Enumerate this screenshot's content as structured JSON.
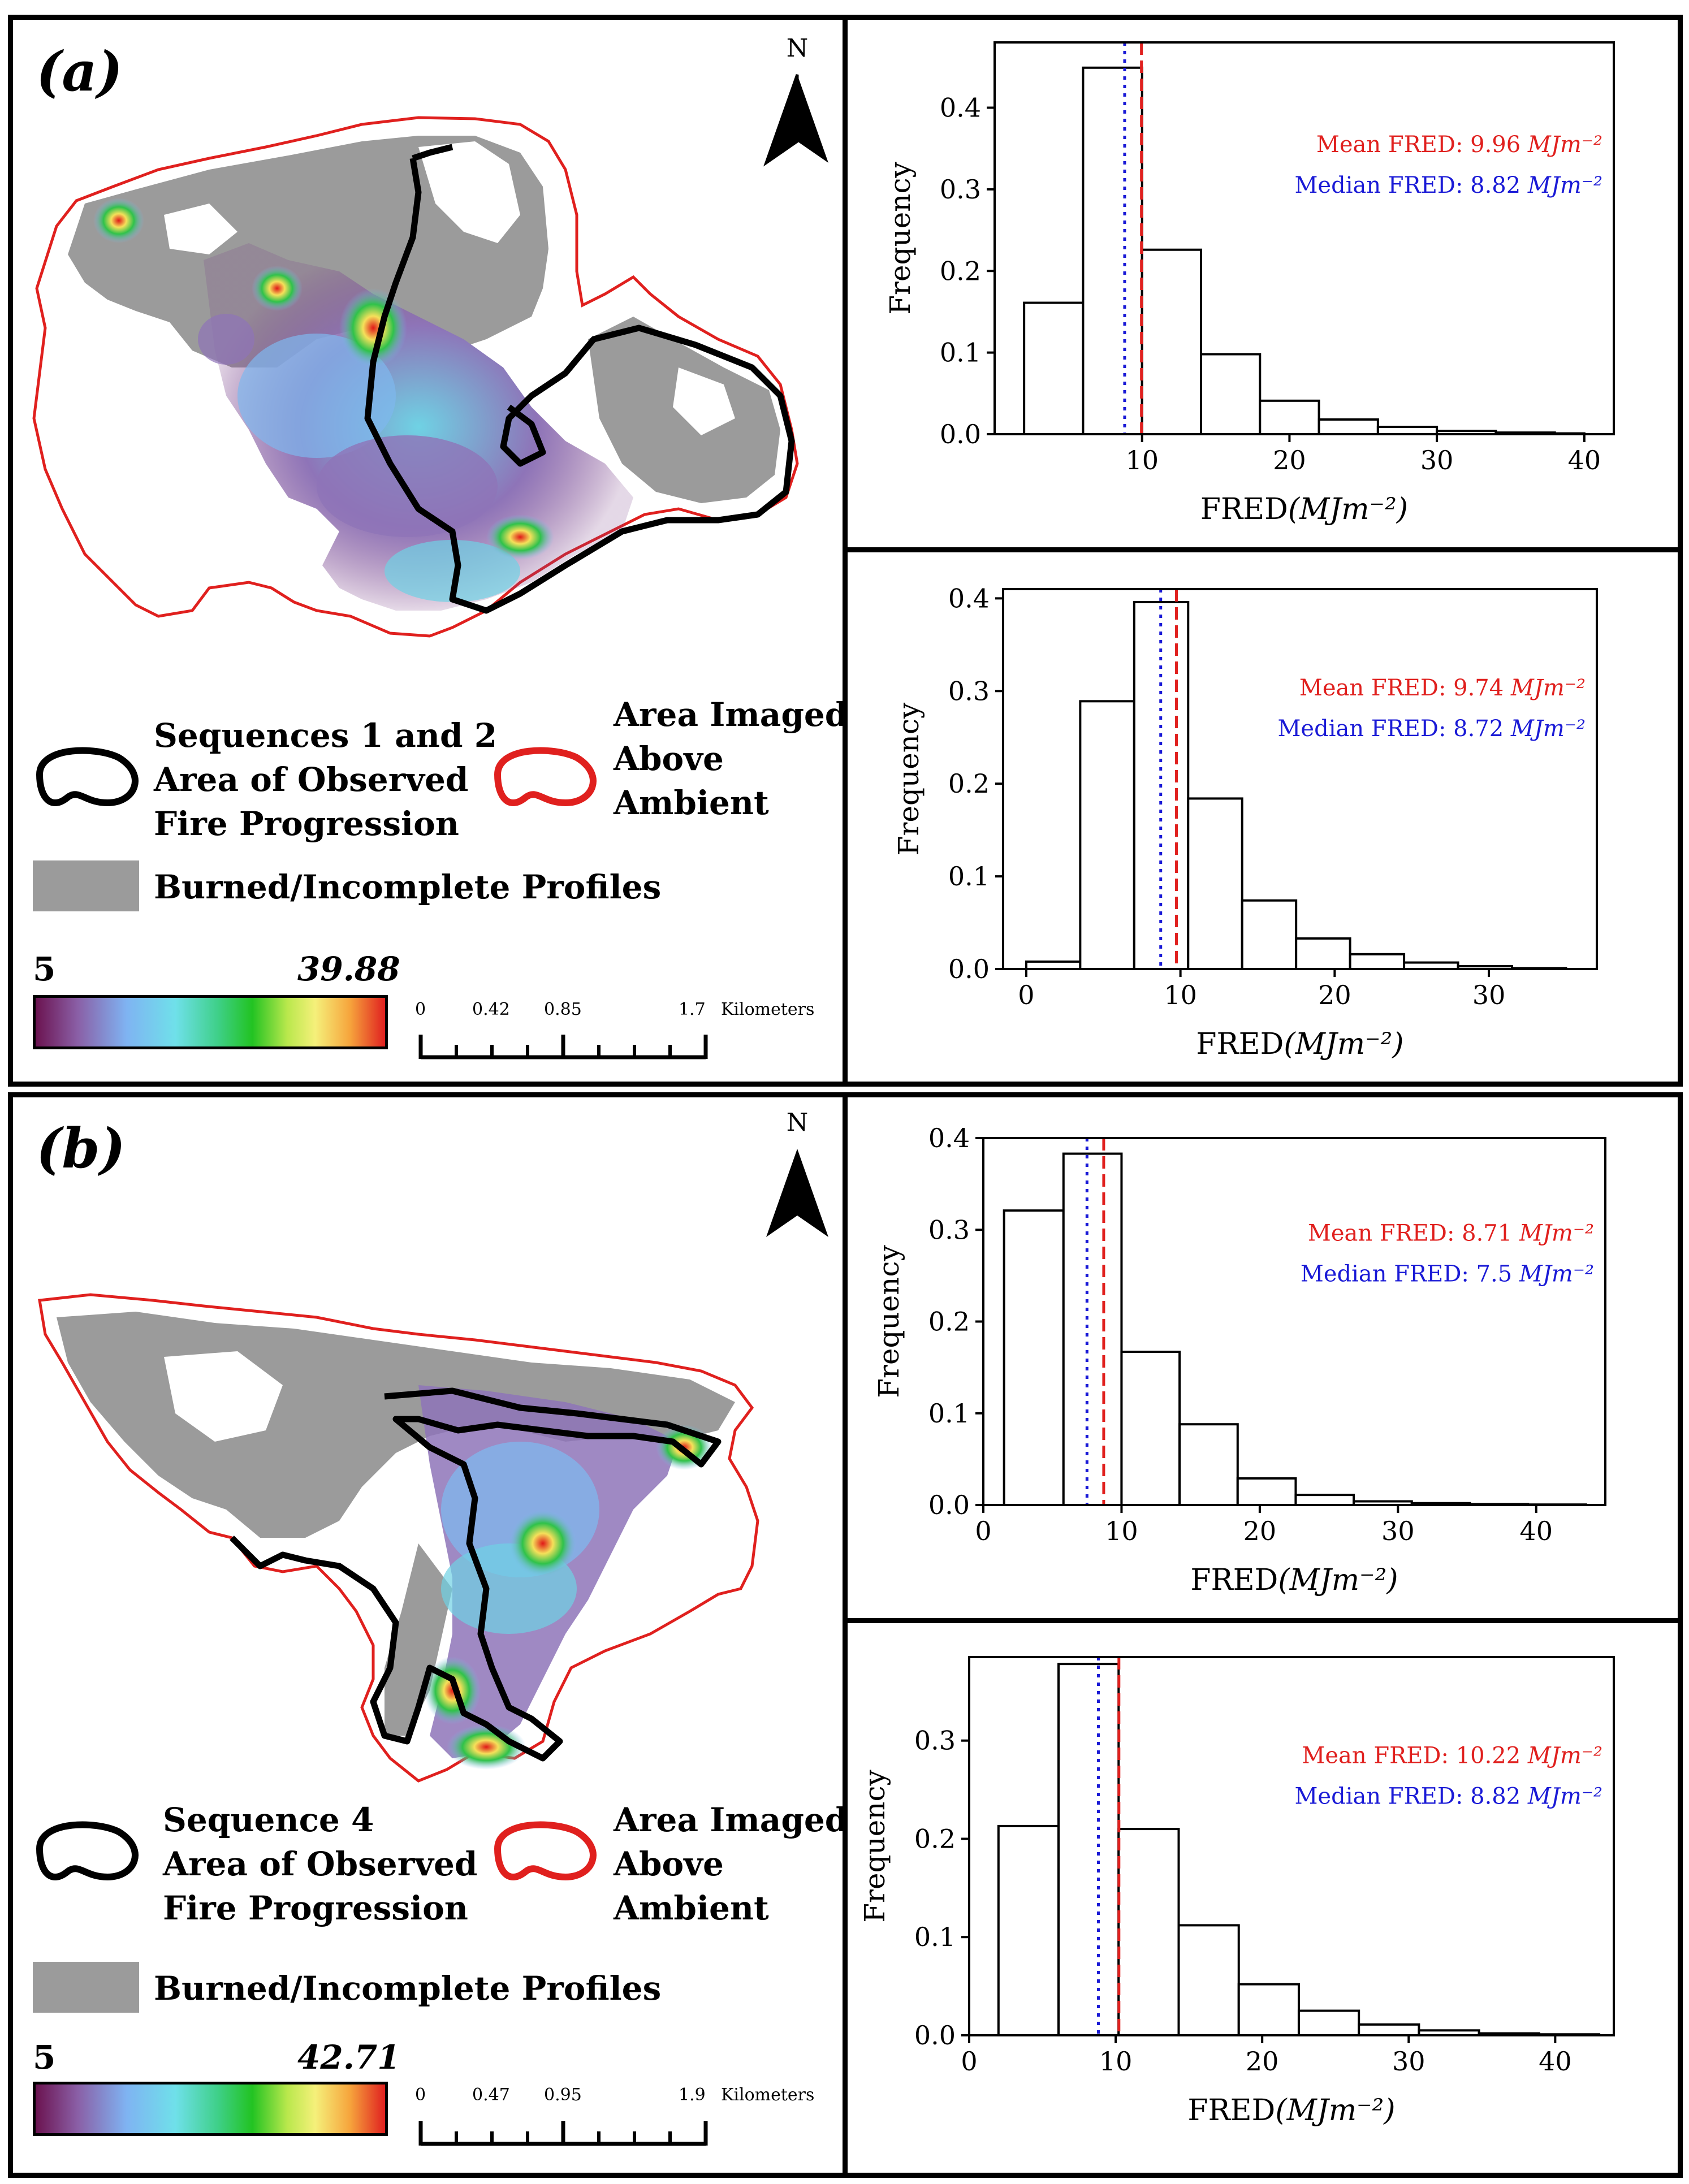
{
  "panels": [
    {
      "label": "(a)",
      "north": "N",
      "legend": {
        "black_line1": "Sequences 1 and 2",
        "black_line2": "Area of Observed",
        "black_line3": "Fire Progression",
        "red_line1": "Area Imaged",
        "red_line2": "Above",
        "red_line3": "Ambient",
        "gray": "Burned/Incomplete Profiles"
      },
      "colorbar": {
        "min": "5",
        "max": "39.88"
      },
      "scalebar": {
        "t0": "0",
        "t1": "0.42",
        "t2": "0.85",
        "t3": "1.7",
        "unit": "Kilometers"
      }
    },
    {
      "label": "(b)",
      "north": "N",
      "legend": {
        "black_line1": "Sequence 4",
        "black_line2": "Area of Observed",
        "black_line3": "Fire Progression",
        "red_line1": "Area Imaged",
        "red_line2": "Above",
        "red_line3": "Ambient",
        "gray": "Burned/Incomplete Profiles"
      },
      "colorbar": {
        "min": "5",
        "max": "42.71"
      },
      "scalebar": {
        "t0": "0",
        "t1": "0.47",
        "t2": "0.95",
        "t3": "1.9",
        "unit": "Kilometers"
      }
    }
  ],
  "chart_data": [
    {
      "type": "bar",
      "xlabel": "FRED",
      "xlabel_unit": "(MJm⁻²)",
      "ylabel": "Frequency",
      "xlim": [
        0,
        42
      ],
      "ylim": [
        0,
        0.48
      ],
      "xticks": [
        10,
        20,
        30,
        40
      ],
      "yticks": [
        0.0,
        0.1,
        0.2,
        0.3,
        0.4
      ],
      "bin_edges": [
        2,
        6,
        10,
        14,
        18,
        22,
        26,
        30,
        34,
        38,
        40
      ],
      "values": [
        0.161,
        0.449,
        0.226,
        0.098,
        0.041,
        0.018,
        0.009,
        0.004,
        0.002,
        0.001
      ],
      "mean_value": 9.96,
      "median_value": 8.82,
      "mean_label": "Mean FRED: 9.96",
      "median_label": "Median FRED: 8.82",
      "unit_label": "MJm⁻²",
      "mean_color": "#e0201e",
      "median_color": "#1a1ad6"
    },
    {
      "type": "bar",
      "xlabel": "FRED",
      "xlabel_unit": "(MJm⁻²)",
      "ylabel": "Frequency",
      "xlim": [
        -1.5,
        37
      ],
      "ylim": [
        0,
        0.41
      ],
      "xticks": [
        0,
        10,
        20,
        30
      ],
      "yticks": [
        0.0,
        0.1,
        0.2,
        0.3,
        0.4
      ],
      "bin_edges": [
        0,
        3.5,
        7,
        10.5,
        14,
        17.5,
        21,
        24.5,
        28,
        31.5,
        35
      ],
      "values": [
        0.008,
        0.289,
        0.396,
        0.184,
        0.074,
        0.033,
        0.016,
        0.007,
        0.003,
        0.001
      ],
      "mean_value": 9.74,
      "median_value": 8.72,
      "mean_label": "Mean FRED: 9.74",
      "median_label": "Median FRED: 8.72",
      "unit_label": "MJm⁻²",
      "mean_color": "#e0201e",
      "median_color": "#1a1ad6"
    },
    {
      "type": "bar",
      "xlabel": "FRED",
      "xlabel_unit": "(MJm⁻²)",
      "ylabel": "Frequency",
      "xlim": [
        0,
        45
      ],
      "ylim": [
        0,
        0.4
      ],
      "xticks": [
        0,
        10,
        20,
        30,
        40
      ],
      "yticks": [
        0.0,
        0.1,
        0.2,
        0.3,
        0.4
      ],
      "bin_edges": [
        1.5,
        5.8,
        10,
        14.2,
        18.4,
        22.6,
        26.8,
        31,
        35.2,
        39.4,
        43.6
      ],
      "values": [
        0.321,
        0.383,
        0.167,
        0.088,
        0.029,
        0.011,
        0.004,
        0.002,
        0.001,
        0.0005
      ],
      "mean_value": 8.71,
      "median_value": 7.5,
      "mean_label": "Mean FRED: 8.71",
      "median_label": "Median FRED: 7.5",
      "unit_label": "MJm⁻²",
      "mean_color": "#e0201e",
      "median_color": "#1a1ad6"
    },
    {
      "type": "bar",
      "xlabel": "FRED",
      "xlabel_unit": "(MJm⁻²)",
      "ylabel": "Frequency",
      "xlim": [
        0,
        44
      ],
      "ylim": [
        0,
        0.385
      ],
      "xticks": [
        0,
        10,
        20,
        30,
        40
      ],
      "yticks": [
        0.0,
        0.1,
        0.2,
        0.3
      ],
      "bin_edges": [
        2,
        6.1,
        10.2,
        14.3,
        18.4,
        22.5,
        26.6,
        30.7,
        34.8,
        38.9,
        43
      ],
      "values": [
        0.213,
        0.378,
        0.21,
        0.112,
        0.052,
        0.025,
        0.011,
        0.005,
        0.002,
        0.001
      ],
      "mean_value": 10.22,
      "median_value": 8.82,
      "mean_label": "Mean FRED: 10.22",
      "median_label": "Median FRED: 8.82",
      "unit_label": "MJm⁻²",
      "mean_color": "#e0201e",
      "median_color": "#1a1ad6"
    }
  ]
}
